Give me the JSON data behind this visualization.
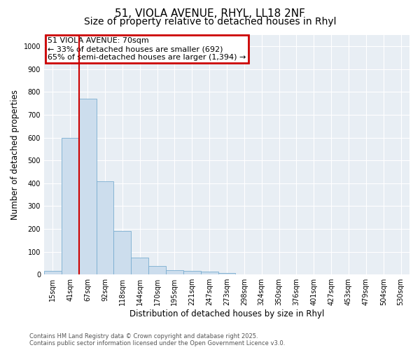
{
  "title1": "51, VIOLA AVENUE, RHYL, LL18 2NF",
  "title2": "Size of property relative to detached houses in Rhyl",
  "xlabel": "Distribution of detached houses by size in Rhyl",
  "ylabel": "Number of detached properties",
  "categories": [
    "15sqm",
    "41sqm",
    "67sqm",
    "92sqm",
    "118sqm",
    "144sqm",
    "170sqm",
    "195sqm",
    "221sqm",
    "247sqm",
    "273sqm",
    "298sqm",
    "324sqm",
    "350sqm",
    "376sqm",
    "401sqm",
    "427sqm",
    "453sqm",
    "479sqm",
    "504sqm",
    "530sqm"
  ],
  "values": [
    15,
    600,
    770,
    410,
    190,
    75,
    37,
    18,
    15,
    13,
    7,
    2,
    0,
    0,
    0,
    0,
    0,
    0,
    0,
    0,
    0
  ],
  "bar_color": "#ccdded",
  "bar_edge_color": "#7aadd0",
  "line_color": "#cc0000",
  "line_x_index": 1.5,
  "annotation_text": "51 VIOLA AVENUE: 70sqm\n← 33% of detached houses are smaller (692)\n65% of semi-detached houses are larger (1,394) →",
  "annotation_box_color": "#cc0000",
  "ylim": [
    0,
    1050
  ],
  "yticks": [
    0,
    100,
    200,
    300,
    400,
    500,
    600,
    700,
    800,
    900,
    1000
  ],
  "background_color": "#e8eef4",
  "grid_color": "#ffffff",
  "footer_text": "Contains HM Land Registry data © Crown copyright and database right 2025.\nContains public sector information licensed under the Open Government Licence v3.0.",
  "title_fontsize": 11,
  "subtitle_fontsize": 10,
  "tick_fontsize": 7,
  "ylabel_fontsize": 8.5,
  "xlabel_fontsize": 8.5,
  "footer_fontsize": 6,
  "annotation_fontsize": 8
}
